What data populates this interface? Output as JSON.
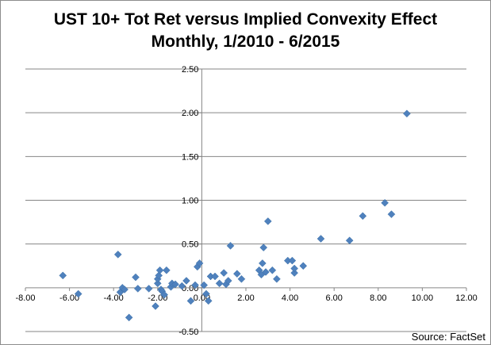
{
  "chart_data": {
    "type": "scatter",
    "title_lines": [
      "UST 10+ Tot Ret versus Implied Convexity Effect",
      "Monthly, 1/2010 - 6/2015"
    ],
    "xlabel": "",
    "ylabel": "",
    "xlim": [
      -8,
      12
    ],
    "ylim": [
      -0.5,
      2.5
    ],
    "x_ticks": [
      "-8.00",
      "-6.00",
      "-4.00",
      "-2.00",
      "0.00",
      "2.00",
      "4.00",
      "6.00",
      "8.00",
      "10.00",
      "12.00"
    ],
    "y_ticks": [
      "-0.50",
      "0.00",
      "0.50",
      "1.00",
      "1.50",
      "2.00",
      "2.50"
    ],
    "grid": "horizontal",
    "marker_color": "#4f81bd",
    "source": "Source: FactSet",
    "points": [
      [
        -6.3,
        0.14
      ],
      [
        -5.6,
        -0.07
      ],
      [
        -3.8,
        0.38
      ],
      [
        -3.7,
        -0.05
      ],
      [
        -3.6,
        0.0
      ],
      [
        -3.5,
        -0.02
      ],
      [
        -3.3,
        -0.34
      ],
      [
        -3.0,
        0.12
      ],
      [
        -2.9,
        -0.01
      ],
      [
        -2.4,
        -0.01
      ],
      [
        -2.1,
        -0.21
      ],
      [
        -2.0,
        0.05
      ],
      [
        -2.0,
        0.1
      ],
      [
        -1.95,
        0.14
      ],
      [
        -1.9,
        0.2
      ],
      [
        -1.85,
        -0.02
      ],
      [
        -1.8,
        -0.04
      ],
      [
        -1.7,
        -0.08
      ],
      [
        -1.6,
        0.2
      ],
      [
        -1.4,
        0.01
      ],
      [
        -1.35,
        0.05
      ],
      [
        -1.2,
        0.04
      ],
      [
        -0.9,
        0.02
      ],
      [
        -0.7,
        0.08
      ],
      [
        -0.5,
        -0.15
      ],
      [
        -0.3,
        0.03
      ],
      [
        -0.2,
        0.24
      ],
      [
        -0.1,
        0.28
      ],
      [
        0.1,
        0.03
      ],
      [
        0.2,
        -0.07
      ],
      [
        0.3,
        -0.15
      ],
      [
        0.4,
        0.13
      ],
      [
        0.6,
        0.13
      ],
      [
        0.8,
        0.05
      ],
      [
        1.0,
        0.17
      ],
      [
        1.1,
        0.04
      ],
      [
        1.2,
        0.08
      ],
      [
        1.3,
        0.48
      ],
      [
        1.6,
        0.16
      ],
      [
        1.8,
        0.1
      ],
      [
        2.6,
        0.2
      ],
      [
        2.7,
        0.15
      ],
      [
        2.75,
        0.28
      ],
      [
        2.8,
        0.46
      ],
      [
        2.9,
        0.18
      ],
      [
        3.0,
        0.76
      ],
      [
        3.2,
        0.2
      ],
      [
        3.4,
        0.1
      ],
      [
        3.9,
        0.31
      ],
      [
        4.1,
        0.31
      ],
      [
        4.2,
        0.17
      ],
      [
        4.2,
        0.22
      ],
      [
        4.6,
        0.25
      ],
      [
        5.4,
        0.56
      ],
      [
        6.7,
        0.54
      ],
      [
        7.3,
        0.82
      ],
      [
        8.3,
        0.97
      ],
      [
        8.6,
        0.84
      ],
      [
        9.3,
        1.99
      ]
    ]
  }
}
